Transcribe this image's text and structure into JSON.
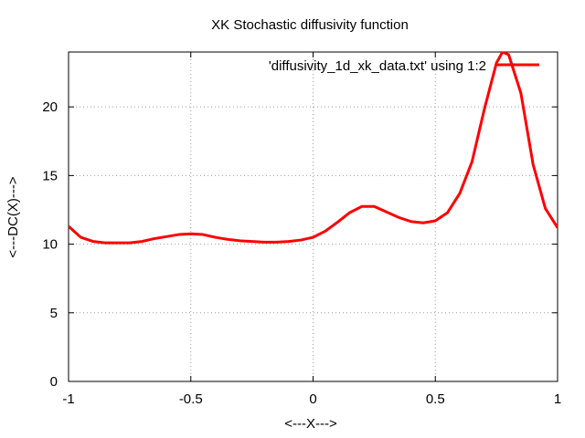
{
  "chart_data": {
    "type": "line",
    "title": "XK Stochastic diffusivity function",
    "xlabel": "<---X--->",
    "ylabel": "<---DC(X)--->",
    "xlim": [
      -1,
      1
    ],
    "ylim": [
      0,
      24
    ],
    "xticks": [
      -1,
      -0.5,
      0,
      0.5,
      1
    ],
    "xtick_labels": [
      "-1",
      "-0.5",
      "0",
      "0.5",
      "1"
    ],
    "yticks": [
      0,
      5,
      10,
      15,
      20
    ],
    "ytick_labels": [
      "0",
      "5",
      "10",
      "15",
      "20"
    ],
    "grid": true,
    "legend_position": "top-right",
    "colors": {
      "series": "#ff0000",
      "grid": "#a0a0a0",
      "axes": "#000000"
    },
    "series": [
      {
        "name": "'diffusivity_1d_xk_data.txt' using 1:2",
        "x": [
          -1.0,
          -0.95,
          -0.9,
          -0.85,
          -0.8,
          -0.75,
          -0.7,
          -0.65,
          -0.6,
          -0.55,
          -0.5,
          -0.45,
          -0.4,
          -0.35,
          -0.3,
          -0.25,
          -0.2,
          -0.15,
          -0.1,
          -0.05,
          0.0,
          0.05,
          0.1,
          0.15,
          0.2,
          0.25,
          0.3,
          0.35,
          0.4,
          0.45,
          0.5,
          0.55,
          0.6,
          0.65,
          0.7,
          0.75,
          0.775,
          0.8,
          0.85,
          0.9,
          0.95,
          1.0
        ],
        "y": [
          11.3,
          10.5,
          10.2,
          10.1,
          10.1,
          10.1,
          10.2,
          10.4,
          10.55,
          10.7,
          10.75,
          10.7,
          10.5,
          10.35,
          10.25,
          10.2,
          10.15,
          10.15,
          10.2,
          10.3,
          10.5,
          10.95,
          11.6,
          12.3,
          12.75,
          12.75,
          12.35,
          11.95,
          11.65,
          11.55,
          11.7,
          12.3,
          13.7,
          16.0,
          19.8,
          23.2,
          24.0,
          23.8,
          21.0,
          15.8,
          12.6,
          11.2
        ]
      }
    ]
  }
}
